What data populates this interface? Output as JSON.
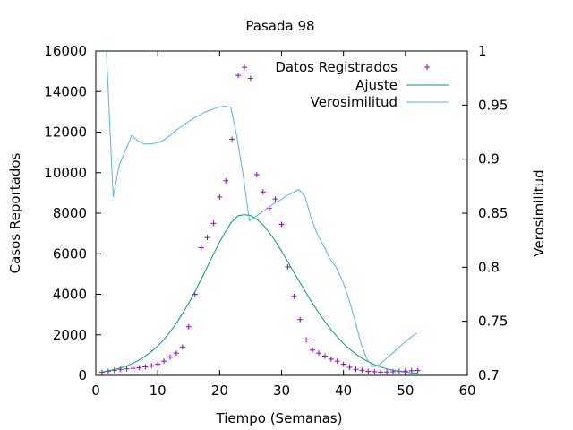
{
  "chart_data": {
    "type": "line",
    "title": "Pasada 98",
    "xlabel": "Tiempo (Semanas)",
    "ylabel": "Casos Reportados",
    "y2label": "Verosimilitud",
    "xlim": [
      0,
      60
    ],
    "ylim": [
      0,
      16000
    ],
    "y2lim": [
      0.7,
      1.0
    ],
    "xticks": [
      "0",
      "10",
      "20",
      "30",
      "40",
      "50",
      "60"
    ],
    "yticks": [
      "0",
      "2000",
      "4000",
      "6000",
      "8000",
      "10000",
      "12000",
      "14000",
      "16000"
    ],
    "y2ticks": [
      "0.7",
      "0.75",
      "0.8",
      "0.85",
      "0.9",
      "0.95",
      "1"
    ],
    "legend_position": "top-right",
    "grid": false,
    "series": [
      {
        "name": "Datos Registrados",
        "kind": "points",
        "axis": "left",
        "color": "#9400d3",
        "x": [
          1,
          2,
          3,
          4,
          5,
          6,
          7,
          8,
          9,
          10,
          11,
          12,
          13,
          14,
          15,
          16,
          17,
          18,
          19,
          20,
          21,
          22,
          23,
          24,
          25,
          26,
          27,
          28,
          29,
          30,
          31,
          32,
          33,
          34,
          35,
          36,
          37,
          38,
          39,
          40,
          41,
          42,
          43,
          44,
          45,
          46,
          47,
          48,
          49,
          50,
          51,
          52
        ],
        "y": [
          150,
          200,
          250,
          300,
          320,
          350,
          380,
          420,
          480,
          550,
          700,
          900,
          1100,
          1400,
          2400,
          4000,
          6300,
          6800,
          7500,
          8800,
          9600,
          11650,
          14800,
          15200,
          14650,
          9900,
          9050,
          8250,
          8700,
          7450,
          5350,
          3900,
          2750,
          1750,
          1250,
          1100,
          950,
          800,
          700,
          550,
          400,
          300,
          250,
          200,
          180,
          160,
          170,
          180,
          200,
          210,
          230,
          240
        ]
      },
      {
        "name": "Ajuste",
        "kind": "line",
        "axis": "left",
        "color": "#009e73",
        "x": [
          1,
          2,
          3,
          4,
          5,
          6,
          7,
          8,
          9,
          10,
          11,
          12,
          13,
          14,
          15,
          16,
          17,
          18,
          19,
          20,
          21,
          22,
          23,
          24,
          25,
          26,
          27,
          28,
          29,
          30,
          31,
          32,
          33,
          34,
          35,
          36,
          37,
          38,
          39,
          40,
          41,
          42,
          43,
          44,
          45,
          46,
          47,
          48,
          49,
          50,
          51,
          52
        ],
        "y": [
          170,
          220,
          290,
          370,
          470,
          600,
          760,
          950,
          1180,
          1450,
          1770,
          2140,
          2570,
          3040,
          3560,
          4130,
          4730,
          5350,
          5980,
          6580,
          7130,
          7600,
          7880,
          7930,
          7880,
          7700,
          7420,
          7050,
          6620,
          6130,
          5610,
          5080,
          4560,
          4050,
          3550,
          3090,
          2650,
          2250,
          1890,
          1570,
          1290,
          1050,
          840,
          670,
          530,
          410,
          320,
          250,
          200,
          160,
          130,
          110
        ]
      },
      {
        "name": "Verosimilitud",
        "kind": "line",
        "axis": "right",
        "color": "#56b4e9",
        "x": [
          1.7,
          2.8,
          3.8,
          4.8,
          5.8,
          6.8,
          7.8,
          8.8,
          9.8,
          10.8,
          11.8,
          12.8,
          13.8,
          14.8,
          15.8,
          16.8,
          17.8,
          18.8,
          19.8,
          20.8,
          21.8,
          22.8,
          23.8,
          24.8,
          25.8,
          26.8,
          27.8,
          28.8,
          29.8,
          30.8,
          31.8,
          32.8,
          33.8,
          34.8,
          35.8,
          36.8,
          37.8,
          38.8,
          39.8,
          40.8,
          41.8,
          42.8,
          43.8,
          44.8,
          45.8,
          46.8,
          47.8,
          48.8,
          49.8,
          50.8,
          51.8
        ],
        "y": [
          1.0,
          0.865,
          0.895,
          0.908,
          0.922,
          0.917,
          0.914,
          0.914,
          0.915,
          0.917,
          0.921,
          0.926,
          0.93,
          0.934,
          0.938,
          0.941,
          0.944,
          0.946,
          0.948,
          0.949,
          0.948,
          0.92,
          0.885,
          0.843,
          0.847,
          0.851,
          0.855,
          0.859,
          0.862,
          0.866,
          0.869,
          0.872,
          0.865,
          0.845,
          0.83,
          0.82,
          0.808,
          0.8,
          0.788,
          0.772,
          0.752,
          0.73,
          0.715,
          0.708,
          0.71,
          0.715,
          0.72,
          0.725,
          0.73,
          0.735,
          0.739
        ]
      }
    ]
  }
}
